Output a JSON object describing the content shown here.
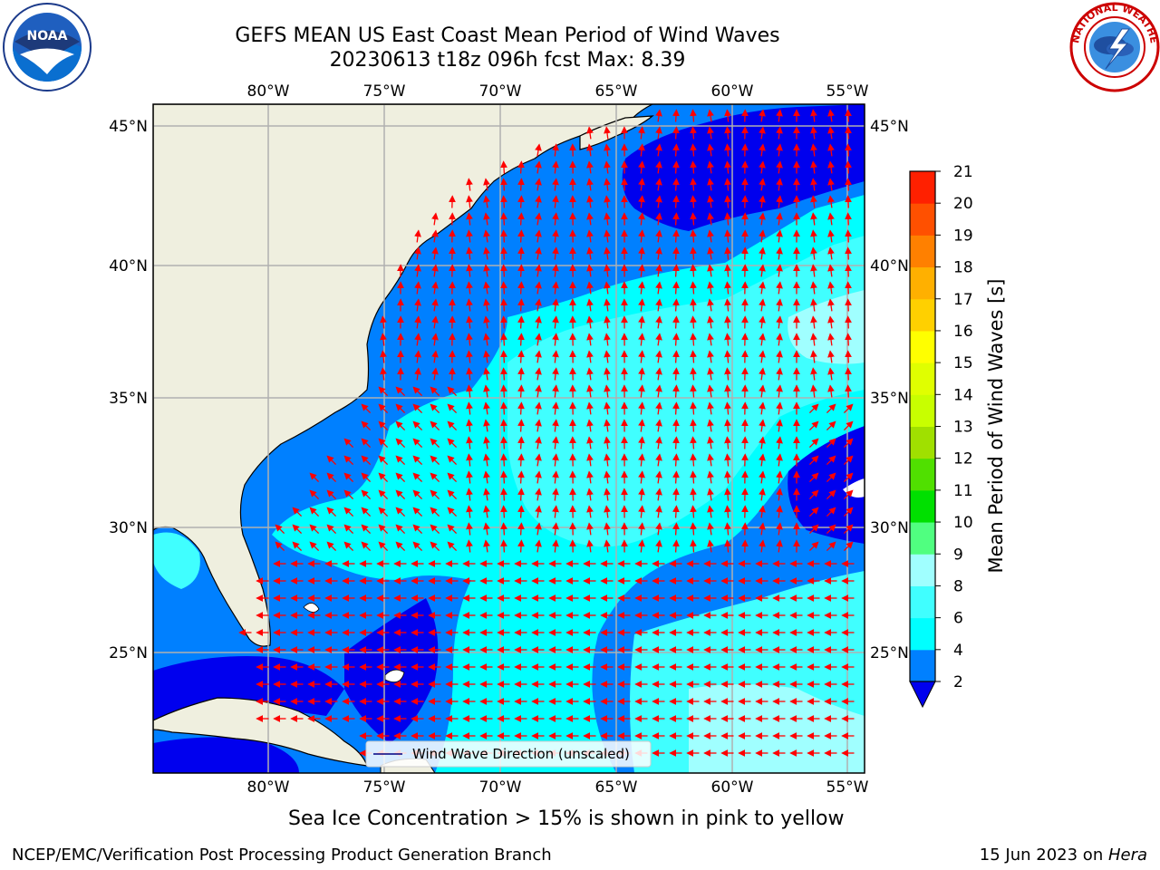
{
  "header": {
    "title_line1": "GEFS MEAN US East Coast Mean Period of Wind Waves",
    "title_line2": "20230613 t18z 096h fcst   Max: 8.39"
  },
  "logos": {
    "left": "noaa-logo",
    "right": "national-weather-service-logo"
  },
  "map": {
    "lon_labels": [
      "80°W",
      "75°W",
      "70°W",
      "65°W",
      "60°W",
      "55°W"
    ],
    "lat_labels": [
      "45°N",
      "40°N",
      "35°N",
      "30°N",
      "25°N"
    ],
    "legend_label": "Wind Wave Direction (unscaled)",
    "land_color": "#efefdf",
    "arrow_color": "#ff0000"
  },
  "colorbar": {
    "title": "Mean Period of Wind Waves [s]",
    "ticks": [
      "2",
      "4",
      "6",
      "8",
      "9",
      "10",
      "11",
      "12",
      "13",
      "14",
      "15",
      "16",
      "17",
      "18",
      "19",
      "20",
      "21"
    ],
    "colors": [
      "#0000ee",
      "#0080ff",
      "#00ffff",
      "#40ffff",
      "#a0ffff",
      "#50ff80",
      "#00e000",
      "#50e000",
      "#a0e000",
      "#c8ff00",
      "#e0ff00",
      "#ffff00",
      "#ffd000",
      "#ffb000",
      "#ff8000",
      "#ff5000",
      "#ff2000",
      "#ff0000"
    ]
  },
  "captions": {
    "ice_note": "Sea Ice Concentration > 15% is shown in pink to yellow",
    "footer_left": "NCEP/EMC/Verification Post Processing Product Generation Branch",
    "footer_date": "15 Jun 2023 on ",
    "footer_machine": "Hera"
  }
}
